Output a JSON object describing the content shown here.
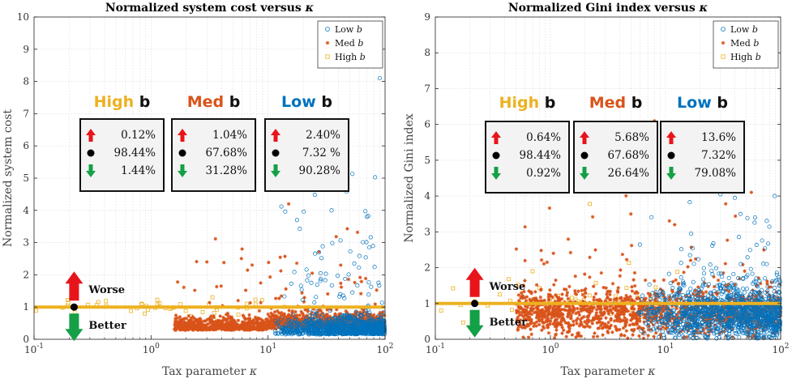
{
  "colors": {
    "low": "#0072BD",
    "med": "#D95319",
    "high": "#EDB120",
    "up": "#E8141B",
    "down": "#14A046"
  },
  "chart_data": [
    {
      "type": "scatter",
      "title": "Normalized system cost versus κ",
      "xlabel": "Tax parameter κ",
      "ylabel": "Normalized system cost",
      "xscale": "log",
      "xlim": [
        0.1,
        100
      ],
      "ylim": [
        0,
        10
      ],
      "yticks": [
        "0",
        "1",
        "2",
        "3",
        "4",
        "5",
        "6",
        "7",
        "8",
        "9",
        "10"
      ],
      "xticks": [
        {
          "base": "10",
          "exp": "-1"
        },
        {
          "base": "10",
          "exp": "0"
        },
        {
          "base": "10",
          "exp": "1"
        },
        {
          "base": "10",
          "exp": "2"
        }
      ],
      "grid": true,
      "legend": {
        "position": "top-right",
        "entries": [
          "Low b",
          "Med b",
          "High b"
        ]
      },
      "reference_line_y": 1,
      "annotations": {
        "worse": "Worse",
        "better": "Better"
      },
      "groups": [
        {
          "name_word": "High",
          "name_b": " b",
          "color_key": "high",
          "up": "0.12%",
          "mid": "98.44%",
          "down": "1.44%"
        },
        {
          "name_word": "Med",
          "name_b": " b",
          "color_key": "med",
          "up": "1.04%",
          "mid": "67.68%",
          "down": "31.28%"
        },
        {
          "name_word": "Low",
          "name_b": " b",
          "color_key": "low",
          "up": "2.40%",
          "mid": "7.32 %",
          "down": "90.28%"
        }
      ],
      "series": [
        {
          "name": "Low b",
          "marker": "circle"
        },
        {
          "name": "Med b",
          "marker": "star"
        },
        {
          "name": "High b",
          "marker": "square"
        }
      ]
    },
    {
      "type": "scatter",
      "title": "Normalized Gini index versus κ",
      "xlabel": "Tax parameter κ",
      "ylabel": "Normalized Gini index",
      "xscale": "log",
      "xlim": [
        0.1,
        100
      ],
      "ylim": [
        0,
        9
      ],
      "yticks": [
        "0",
        "1",
        "2",
        "3",
        "4",
        "5",
        "6",
        "7",
        "8",
        "9"
      ],
      "xticks": [
        {
          "base": "10",
          "exp": "-1"
        },
        {
          "base": "10",
          "exp": "0"
        },
        {
          "base": "10",
          "exp": "1"
        },
        {
          "base": "10",
          "exp": "2"
        }
      ],
      "grid": true,
      "legend": {
        "position": "top-right",
        "entries": [
          "Low b",
          "Med b",
          "High b"
        ]
      },
      "reference_line_y": 1,
      "annotations": {
        "worse": "Worse",
        "better": "Better"
      },
      "groups": [
        {
          "name_word": "High",
          "name_b": " b",
          "color_key": "high",
          "up": "0.64%",
          "mid": "98.44%",
          "down": "0.92%"
        },
        {
          "name_word": "Med",
          "name_b": " b",
          "color_key": "med",
          "up": "5.68%",
          "mid": "67.68%",
          "down": "26.64%"
        },
        {
          "name_word": "Low",
          "name_b": " b",
          "color_key": "low",
          "up": "13.6%",
          "mid": "7.32%",
          "down": "79.08%"
        }
      ],
      "series": [
        {
          "name": "Low b",
          "marker": "circle"
        },
        {
          "name": "Med b",
          "marker": "star"
        },
        {
          "name": "High b",
          "marker": "square"
        }
      ]
    }
  ]
}
